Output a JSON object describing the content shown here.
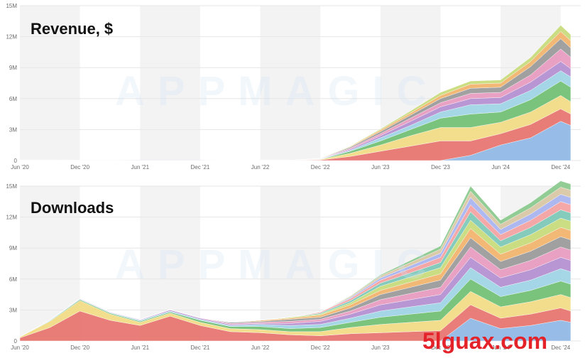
{
  "watermark": "APPMAGIC",
  "site_watermark": "5lguax.com",
  "colors": {
    "band": "#f3f3f3",
    "grid": "#e6e6e6",
    "palette": [
      "#8fb8e6",
      "#e8736e",
      "#f2dc84",
      "#6fbf73",
      "#9fd4e6",
      "#b38fd1",
      "#e89ac0",
      "#9a9a9a",
      "#f2b36b",
      "#c8dc7a",
      "#7bc8b8",
      "#f4a1a1",
      "#a8b4f0",
      "#d9c7a3",
      "#88c98c",
      "#c1a1e0"
    ]
  },
  "chart_data": [
    {
      "type": "area",
      "title": "Revenue, $",
      "stacked": true,
      "x": [
        "2020-06",
        "2020-09",
        "2020-12",
        "2021-03",
        "2021-06",
        "2021-09",
        "2021-12",
        "2022-03",
        "2022-06",
        "2022-09",
        "2022-12",
        "2023-03",
        "2023-06",
        "2023-09",
        "2023-12",
        "2024-03",
        "2024-06",
        "2024-09",
        "2024-12",
        "2025-01"
      ],
      "xticks": [
        "Jun '20",
        "Dec '20",
        "Jun '21",
        "Dec '21",
        "Jun '22",
        "Dec '22",
        "Jun '23",
        "Dec '23",
        "Jun '24",
        "Dec '24"
      ],
      "yticks": [
        "0",
        "3M",
        "6M",
        "9M",
        "12M",
        "15M"
      ],
      "ylim": [
        0,
        15
      ],
      "yunit": "M",
      "grid": true,
      "series": [
        {
          "values": [
            0,
            0,
            0,
            0,
            0,
            0,
            0,
            0,
            0,
            0,
            0,
            0,
            0,
            0,
            0,
            0.5,
            1.5,
            2.2,
            3.8,
            3.4
          ]
        },
        {
          "values": [
            0,
            0,
            0,
            0,
            0,
            0,
            0,
            0,
            0,
            0,
            0.05,
            0.4,
            0.9,
            1.4,
            1.9,
            1.4,
            1.1,
            1.3,
            1.2,
            1.1
          ]
        },
        {
          "values": [
            0,
            0,
            0,
            0,
            0,
            0,
            0,
            0,
            0,
            0,
            0.05,
            0.3,
            0.6,
            1.0,
            1.3,
            1.3,
            1.1,
            1.2,
            1.3,
            1.2
          ]
        },
        {
          "values": [
            0,
            0,
            0,
            0,
            0,
            0,
            0,
            0,
            0,
            0,
            0.02,
            0.2,
            0.4,
            0.6,
            0.9,
            1.3,
            1.0,
            1.2,
            1.4,
            1.4
          ]
        },
        {
          "values": [
            0,
            0,
            0,
            0,
            0,
            0,
            0,
            0,
            0,
            0,
            0.02,
            0.1,
            0.3,
            0.4,
            0.6,
            0.9,
            0.8,
            0.9,
            1.0,
            1.0
          ]
        },
        {
          "values": [
            0.03,
            0.03,
            0.04,
            0.04,
            0.05,
            0.05,
            0.05,
            0.03,
            0.03,
            0.03,
            0.02,
            0.1,
            0.2,
            0.4,
            0.5,
            0.6,
            0.6,
            0.8,
            0.9,
            0.8
          ]
        },
        {
          "values": [
            0,
            0,
            0,
            0,
            0,
            0,
            0,
            0,
            0,
            0,
            0.02,
            0.1,
            0.2,
            0.3,
            0.4,
            0.5,
            0.5,
            0.7,
            1.2,
            1.1
          ]
        },
        {
          "values": [
            0,
            0,
            0,
            0,
            0,
            0,
            0,
            0,
            0,
            0,
            0.02,
            0.1,
            0.2,
            0.3,
            0.4,
            0.5,
            0.5,
            0.8,
            1.0,
            0.9
          ]
        },
        {
          "values": [
            0,
            0,
            0,
            0,
            0,
            0,
            0,
            0,
            0,
            0,
            0.01,
            0.05,
            0.15,
            0.2,
            0.3,
            0.4,
            0.4,
            0.5,
            0.7,
            0.7
          ]
        },
        {
          "values": [
            0,
            0,
            0,
            0,
            0,
            0,
            0,
            0,
            0,
            0,
            0.01,
            0.05,
            0.1,
            0.2,
            0.3,
            0.3,
            0.3,
            0.4,
            0.6,
            0.6
          ]
        }
      ]
    },
    {
      "type": "area",
      "title": "Downloads",
      "stacked": true,
      "x": [
        "2020-06",
        "2020-09",
        "2020-12",
        "2021-03",
        "2021-06",
        "2021-09",
        "2021-12",
        "2022-03",
        "2022-06",
        "2022-09",
        "2022-12",
        "2023-03",
        "2023-06",
        "2023-09",
        "2023-12",
        "2024-03",
        "2024-06",
        "2024-09",
        "2024-12",
        "2025-01"
      ],
      "xticks": [
        "Jun '20",
        "Dec '20",
        "Jun '21",
        "Dec '21",
        "Jun '22",
        "Dec '22",
        "Jun '23",
        "Dec '23",
        "Jun '24",
        "Dec '24"
      ],
      "yticks": [
        "0",
        "3M",
        "6M",
        "9M",
        "12M",
        "15M"
      ],
      "ylim": [
        0,
        15
      ],
      "yunit": "M",
      "grid": true,
      "series": [
        {
          "values": [
            0,
            0,
            0,
            0,
            0,
            0,
            0,
            0,
            0,
            0,
            0,
            0,
            0,
            0,
            0,
            2.2,
            1.2,
            1.5,
            2.0,
            1.8
          ]
        },
        {
          "values": [
            0.3,
            1.3,
            2.9,
            2.0,
            1.5,
            2.4,
            1.5,
            0.9,
            0.8,
            0.6,
            0.5,
            0.7,
            0.8,
            0.9,
            1.0,
            1.3,
            1.0,
            1.1,
            1.2,
            1.1
          ]
        },
        {
          "values": [
            0.1,
            0.6,
            1.0,
            0.6,
            0.3,
            0.3,
            0.3,
            0.3,
            0.3,
            0.3,
            0.4,
            0.6,
            0.8,
            0.9,
            1.0,
            1.3,
            1.1,
            1.2,
            1.3,
            1.3
          ]
        },
        {
          "values": [
            0,
            0.05,
            0.1,
            0.1,
            0.1,
            0.1,
            0.2,
            0.2,
            0.3,
            0.3,
            0.4,
            0.5,
            0.7,
            0.8,
            0.9,
            1.2,
            1.0,
            1.1,
            1.3,
            1.3
          ]
        },
        {
          "values": [
            0,
            0.05,
            0.05,
            0.05,
            0.1,
            0.1,
            0.1,
            0.1,
            0.2,
            0.3,
            0.3,
            0.4,
            0.6,
            0.7,
            0.8,
            1.1,
            0.9,
            1.0,
            1.2,
            1.2
          ]
        },
        {
          "values": [
            0,
            0.02,
            0.05,
            0.05,
            0.05,
            0.1,
            0.1,
            0.1,
            0.1,
            0.2,
            0.3,
            0.4,
            0.6,
            0.7,
            0.8,
            1.0,
            0.9,
            1.0,
            1.1,
            1.1
          ]
        },
        {
          "values": [
            0,
            0,
            0.02,
            0.02,
            0.05,
            0.05,
            0.05,
            0.1,
            0.1,
            0.2,
            0.2,
            0.3,
            0.5,
            0.6,
            0.7,
            1.0,
            0.8,
            0.9,
            1.0,
            1.0
          ]
        },
        {
          "values": [
            0,
            0,
            0,
            0,
            0,
            0,
            0,
            0.1,
            0.1,
            0.2,
            0.2,
            0.3,
            0.5,
            0.6,
            0.7,
            0.9,
            0.8,
            0.9,
            1.0,
            1.0
          ]
        },
        {
          "values": [
            0,
            0,
            0,
            0,
            0,
            0,
            0,
            0,
            0.1,
            0.1,
            0.2,
            0.3,
            0.4,
            0.5,
            0.6,
            0.9,
            0.7,
            0.8,
            0.9,
            0.9
          ]
        },
        {
          "values": [
            0,
            0,
            0,
            0,
            0,
            0,
            0,
            0,
            0,
            0.1,
            0.1,
            0.2,
            0.4,
            0.5,
            0.6,
            0.8,
            0.7,
            0.8,
            0.9,
            0.9
          ]
        },
        {
          "values": [
            0,
            0,
            0,
            0,
            0,
            0,
            0,
            0,
            0,
            0,
            0.1,
            0.2,
            0.3,
            0.4,
            0.5,
            0.8,
            0.6,
            0.7,
            0.8,
            0.8
          ]
        },
        {
          "values": [
            0,
            0,
            0,
            0,
            0,
            0,
            0,
            0,
            0,
            0,
            0.1,
            0.2,
            0.3,
            0.4,
            0.5,
            0.7,
            0.6,
            0.7,
            0.8,
            0.8
          ]
        },
        {
          "values": [
            0,
            0,
            0,
            0,
            0,
            0,
            0,
            0,
            0,
            0,
            0,
            0.1,
            0.2,
            0.3,
            0.4,
            0.7,
            0.5,
            0.6,
            0.7,
            0.7
          ]
        },
        {
          "values": [
            0,
            0,
            0,
            0,
            0,
            0,
            0,
            0,
            0,
            0,
            0,
            0.1,
            0.2,
            0.3,
            0.4,
            0.6,
            0.5,
            0.6,
            0.7,
            0.7
          ]
        },
        {
          "values": [
            0,
            0,
            0,
            0,
            0,
            0,
            0,
            0,
            0,
            0,
            0,
            0.05,
            0.1,
            0.2,
            0.3,
            0.5,
            0.4,
            0.5,
            0.6,
            0.6
          ]
        }
      ]
    }
  ]
}
